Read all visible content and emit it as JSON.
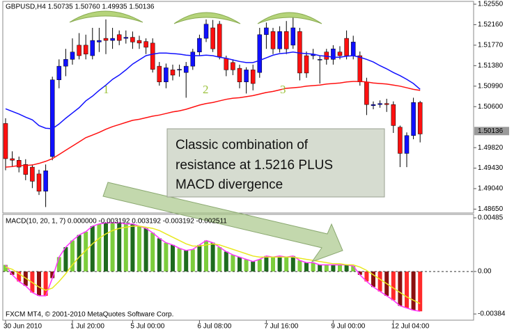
{
  "chart_data": [
    {
      "type": "candlestick",
      "title": "GBPUSD,H4  1.50735 1.50760 1.49935 1.50136",
      "open": [
        1.5028,
        1.4961,
        1.4958,
        1.495,
        1.4945,
        1.4932,
        1.4899,
        1.4965,
        1.5111,
        1.5137,
        1.515,
        1.5177,
        1.5177,
        1.5157,
        1.5183,
        1.519,
        1.5186,
        1.5197,
        1.519,
        1.5192,
        1.5186,
        1.5184,
        1.5181,
        1.5137,
        1.5107,
        1.513,
        1.513,
        1.5125,
        1.5137,
        1.5164,
        1.519,
        1.521,
        1.5217,
        1.5152,
        1.5144,
        1.5133,
        1.5107,
        1.513,
        1.5125,
        1.5197,
        1.5203,
        1.517,
        1.5203,
        1.5177,
        1.5203,
        1.5157,
        1.5157,
        1.515,
        1.5164,
        1.515,
        1.5164,
        1.519,
        1.5157,
        1.5157,
        1.5107,
        1.5062,
        1.5064,
        1.5066,
        1.5064,
        1.5021,
        1.4971,
        1.5005,
        1.5068
      ],
      "high": [
        1.5038,
        1.4975,
        1.4965,
        1.496,
        1.495,
        1.494,
        1.495,
        1.5117,
        1.515,
        1.517,
        1.519,
        1.52,
        1.5197,
        1.521,
        1.521,
        1.5226,
        1.521,
        1.5205,
        1.5205,
        1.5203,
        1.5195,
        1.519,
        1.519,
        1.5145,
        1.5142,
        1.514,
        1.514,
        1.5145,
        1.517,
        1.5197,
        1.5226,
        1.5225,
        1.5223,
        1.5157,
        1.515,
        1.514,
        1.5135,
        1.514,
        1.521,
        1.522,
        1.521,
        1.5213,
        1.5223,
        1.523,
        1.521,
        1.5165,
        1.517,
        1.5157,
        1.517,
        1.5177,
        1.5175,
        1.5205,
        1.5195,
        1.5165,
        1.5115,
        1.507,
        1.5072,
        1.5075,
        1.507,
        1.5024,
        1.5011,
        1.5077,
        1.5071
      ],
      "low": [
        1.4939,
        1.4945,
        1.4935,
        1.492,
        1.4905,
        1.4892,
        1.4869,
        1.4958,
        1.5095,
        1.5118,
        1.514,
        1.515,
        1.515,
        1.515,
        1.5164,
        1.516,
        1.517,
        1.5177,
        1.518,
        1.517,
        1.517,
        1.516,
        1.5125,
        1.51,
        1.5095,
        1.511,
        1.5117,
        1.5077,
        1.513,
        1.5157,
        1.5183,
        1.5164,
        1.515,
        1.5118,
        1.512,
        1.5095,
        1.5085,
        1.5091,
        1.5115,
        1.517,
        1.516,
        1.5163,
        1.516,
        1.517,
        1.511,
        1.5115,
        1.515,
        1.5104,
        1.514,
        1.514,
        1.515,
        1.515,
        1.515,
        1.51,
        1.5044,
        1.5055,
        1.5058,
        1.505,
        1.501,
        1.4945,
        1.4945,
        1.4998,
        1.4992
      ],
      "close": [
        1.4961,
        1.4958,
        1.4945,
        1.4931,
        1.4918,
        1.4899,
        1.4938,
        1.5111,
        1.5137,
        1.515,
        1.5164,
        1.5157,
        1.516,
        1.5186,
        1.5186,
        1.5186,
        1.519,
        1.5186,
        1.5192,
        1.5183,
        1.5181,
        1.5173,
        1.5131,
        1.5107,
        1.5134,
        1.512,
        1.5131,
        1.5137,
        1.5164,
        1.519,
        1.5217,
        1.517,
        1.5155,
        1.513,
        1.513,
        1.5107,
        1.513,
        1.5104,
        1.5197,
        1.521,
        1.517,
        1.5203,
        1.517,
        1.521,
        1.5124,
        1.5124,
        1.516,
        1.515,
        1.515,
        1.517,
        1.5157,
        1.5157,
        1.5183,
        1.5107,
        1.5064,
        1.5064,
        1.5066,
        1.5064,
        1.5024,
        1.4971,
        1.5005,
        1.5068,
        1.5008
      ],
      "up_color": "#1010ff",
      "down_color": "#ff1010",
      "series": [
        {
          "color": "#1010ff",
          "values": [
            1.5056,
            1.5051,
            1.5046,
            1.504,
            1.5035,
            1.5024,
            1.5019,
            1.5018,
            1.5027,
            1.5038,
            1.5048,
            1.5058,
            1.5071,
            1.508,
            1.5091,
            1.5101,
            1.5112,
            1.512,
            1.513,
            1.5141,
            1.5149,
            1.5157,
            1.516,
            1.5162,
            1.5162,
            1.5161,
            1.516,
            1.5158,
            1.5157,
            1.5157,
            1.5158,
            1.5157,
            1.5154,
            1.5152,
            1.5149,
            1.5146,
            1.5144,
            1.5144,
            1.5148,
            1.5153,
            1.5158,
            1.5161,
            1.5162,
            1.5164,
            1.5162,
            1.5161,
            1.516,
            1.5157,
            1.5156,
            1.5154,
            1.5154,
            1.5156,
            1.5157,
            1.5154,
            1.515,
            1.5145,
            1.5138,
            1.5132,
            1.5125,
            1.5119,
            1.5112,
            1.5104,
            1.5093
          ]
        },
        {
          "color": "#ff1010",
          "values": [
            1.4945,
            1.4946,
            1.4948,
            1.4948,
            1.4949,
            1.4952,
            1.4956,
            1.4961,
            1.4969,
            1.4977,
            1.4985,
            1.4993,
            1.5001,
            1.5006,
            1.5011,
            1.5017,
            1.5022,
            1.5026,
            1.503,
            1.5034,
            1.5036,
            1.5039,
            1.5042,
            1.5044,
            1.5047,
            1.505,
            1.5052,
            1.5055,
            1.5059,
            1.5063,
            1.5066,
            1.5068,
            1.5071,
            1.5074,
            1.5076,
            1.5077,
            1.5079,
            1.5081,
            1.5084,
            1.5087,
            1.5089,
            1.5092,
            1.5095,
            1.5096,
            1.5097,
            1.5099,
            1.51,
            1.5101,
            1.5103,
            1.5104,
            1.5105,
            1.5107,
            1.5108,
            1.5108,
            1.5107,
            1.5105,
            1.5104,
            1.5103,
            1.5101,
            1.5099,
            1.5096,
            1.5093,
            1.5091
          ]
        }
      ],
      "ylim": [
        1.4859,
        1.5259
      ],
      "yticks": [
        {
          "value": 1.5255,
          "label": "1.52550"
        },
        {
          "value": 1.5216,
          "label": "1.52160"
        },
        {
          "value": 1.5177,
          "label": "1.51770"
        },
        {
          "value": 1.5138,
          "label": "1.51380"
        },
        {
          "value": 1.5099,
          "label": "1.50990"
        },
        {
          "value": 1.506,
          "label": "1.50600"
        },
        {
          "value": 1.4982,
          "label": "1.49820"
        },
        {
          "value": 1.4943,
          "label": "1.49430"
        },
        {
          "value": 1.4904,
          "label": "1.49040"
        },
        {
          "value": 1.4865,
          "label": "1.48650"
        }
      ],
      "last_price": {
        "value": 1.50136,
        "label": "1.50136"
      },
      "annotations": [
        "1",
        "2",
        "3"
      ],
      "note": [
        "Classic combination of",
        "resistance at 1.5216 PLUS",
        "MACD divergence"
      ]
    },
    {
      "type": "macd",
      "title": "MACD(10, 20, 1, 7) 0.000000 -0.003192 0.003192 -0.003192 -0.002511",
      "categories": [
        "30 Jun 2010",
        null,
        null,
        null,
        null,
        null,
        null,
        null,
        null,
        null,
        "1 Jul 20:00",
        null,
        null,
        null,
        null,
        null,
        null,
        null,
        null,
        "5 Jul 00:00",
        null,
        null,
        null,
        null,
        null,
        null,
        null,
        null,
        null,
        "6 Jul 08:00",
        null,
        null,
        null,
        null,
        null,
        null,
        null,
        null,
        null,
        "7 Jul 16:00",
        null,
        null,
        null,
        null,
        null,
        null,
        null,
        null,
        null,
        "9 Jul 00:00",
        null,
        null,
        null,
        null,
        null,
        null,
        null,
        null,
        "12 Jul 04:00",
        null,
        null,
        null,
        null
      ],
      "values": [
        0.0006,
        -0.0003,
        -0.0009,
        -0.0013,
        -0.0019,
        -0.0022,
        -0.0022,
        -0.0006,
        0.0013,
        0.0022,
        0.0028,
        0.0033,
        0.0036,
        0.0041,
        0.0043,
        0.0044,
        0.0044,
        0.0044,
        0.0043,
        0.0043,
        0.0041,
        0.0039,
        0.0035,
        0.003,
        0.0026,
        0.0024,
        0.0021,
        0.0019,
        0.002,
        0.0024,
        0.0028,
        0.0026,
        0.0022,
        0.0018,
        0.0015,
        0.0013,
        0.0011,
        0.0009,
        0.0011,
        0.0014,
        0.0013,
        0.0014,
        0.0013,
        0.0014,
        0.001,
        0.0008,
        0.0008,
        0.0006,
        0.0006,
        0.0006,
        0.0006,
        0.0006,
        0.0005,
        -0.0003,
        -0.0009,
        -0.0014,
        -0.0018,
        -0.0022,
        -0.0026,
        -0.0031,
        -0.0033,
        -0.0035,
        -0.0036
      ],
      "colors": [
        "#7ccd3c",
        "#8b1010",
        "#ff2a2a",
        "#8b1010",
        "#ff2a2a",
        "#8b1010",
        "#ff2a2a",
        "#8b1010",
        "#7ccd3c",
        "#1e6b1e",
        "#7ccd3c",
        "#1e6b1e",
        "#7ccd3c",
        "#1e6b1e",
        "#7ccd3c",
        "#1e6b1e",
        "#7ccd3c",
        "#1e6b1e",
        "#7ccd3c",
        "#1e6b1e",
        "#7ccd3c",
        "#1e6b1e",
        "#7ccd3c",
        "#1e6b1e",
        "#7ccd3c",
        "#1e6b1e",
        "#7ccd3c",
        "#1e6b1e",
        "#7ccd3c",
        "#1e6b1e",
        "#7ccd3c",
        "#1e6b1e",
        "#7ccd3c",
        "#1e6b1e",
        "#7ccd3c",
        "#1e6b1e",
        "#7ccd3c",
        "#1e6b1e",
        "#7ccd3c",
        "#1e6b1e",
        "#7ccd3c",
        "#1e6b1e",
        "#7ccd3c",
        "#1e6b1e",
        "#7ccd3c",
        "#1e6b1e",
        "#7ccd3c",
        "#1e6b1e",
        "#7ccd3c",
        "#1e6b1e",
        "#7ccd3c",
        "#1e6b1e",
        "#7ccd3c",
        "#8b1010",
        "#ff2a2a",
        "#8b1010",
        "#ff2a2a",
        "#8b1010",
        "#ff2a2a",
        "#8b1010",
        "#ff2a2a",
        "#8b1010",
        "#ff2a2a"
      ],
      "series": [
        {
          "color": "#ff33ff",
          "values": [
            0.0006,
            -0.0003,
            -0.0009,
            -0.0013,
            -0.0019,
            -0.0022,
            -0.0022,
            -0.0006,
            0.0013,
            0.0022,
            0.0028,
            0.0033,
            0.0036,
            0.0041,
            0.0043,
            0.0044,
            0.0044,
            0.0044,
            0.0043,
            0.0043,
            0.0041,
            0.0039,
            0.0035,
            0.003,
            0.0026,
            0.0024,
            0.0021,
            0.0019,
            0.002,
            0.0024,
            0.0028,
            0.0026,
            0.0022,
            0.0018,
            0.0015,
            0.0013,
            0.0011,
            0.0009,
            0.0011,
            0.0014,
            0.0013,
            0.0014,
            0.0013,
            0.0014,
            0.001,
            0.0008,
            0.0008,
            0.0006,
            0.0006,
            0.0006,
            0.0006,
            0.0006,
            0.0005,
            -0.0003,
            -0.0009,
            -0.0014,
            -0.0018,
            -0.0022,
            -0.0026,
            -0.0031,
            -0.0033,
            -0.0035,
            -0.0036
          ]
        },
        {
          "color": "#e8e820",
          "values": [
            0.0004,
            0.0002,
            -0.0002,
            -0.0006,
            -0.001,
            -0.0014,
            -0.0017,
            -0.0015,
            -0.0009,
            -0.0002,
            0.0006,
            0.0013,
            0.0019,
            0.0025,
            0.003,
            0.0034,
            0.0037,
            0.0039,
            0.004,
            0.0041,
            0.0041,
            0.004,
            0.0039,
            0.0037,
            0.0034,
            0.0031,
            0.0028,
            0.0025,
            0.0023,
            0.0023,
            0.0024,
            0.0025,
            0.0024,
            0.0022,
            0.002,
            0.0018,
            0.0016,
            0.0014,
            0.0013,
            0.0013,
            0.0013,
            0.0013,
            0.0013,
            0.0013,
            0.0012,
            0.0011,
            0.001,
            0.0009,
            0.0008,
            0.0007,
            0.0007,
            0.0006,
            0.0006,
            0.0004,
            0.0001,
            -0.0003,
            -0.0007,
            -0.0011,
            -0.0015,
            -0.0019,
            -0.0023,
            -0.0026,
            -0.0029
          ]
        }
      ],
      "ylim": [
        -0.0044,
        0.0051
      ],
      "yticks": [
        0.00485,
        {
          "value": 0,
          "label": "0.00"
        },
        -0.00384
      ],
      "footer": "FXCM MT4, © 2001-2010 MetaQuotes Software Corp."
    }
  ]
}
